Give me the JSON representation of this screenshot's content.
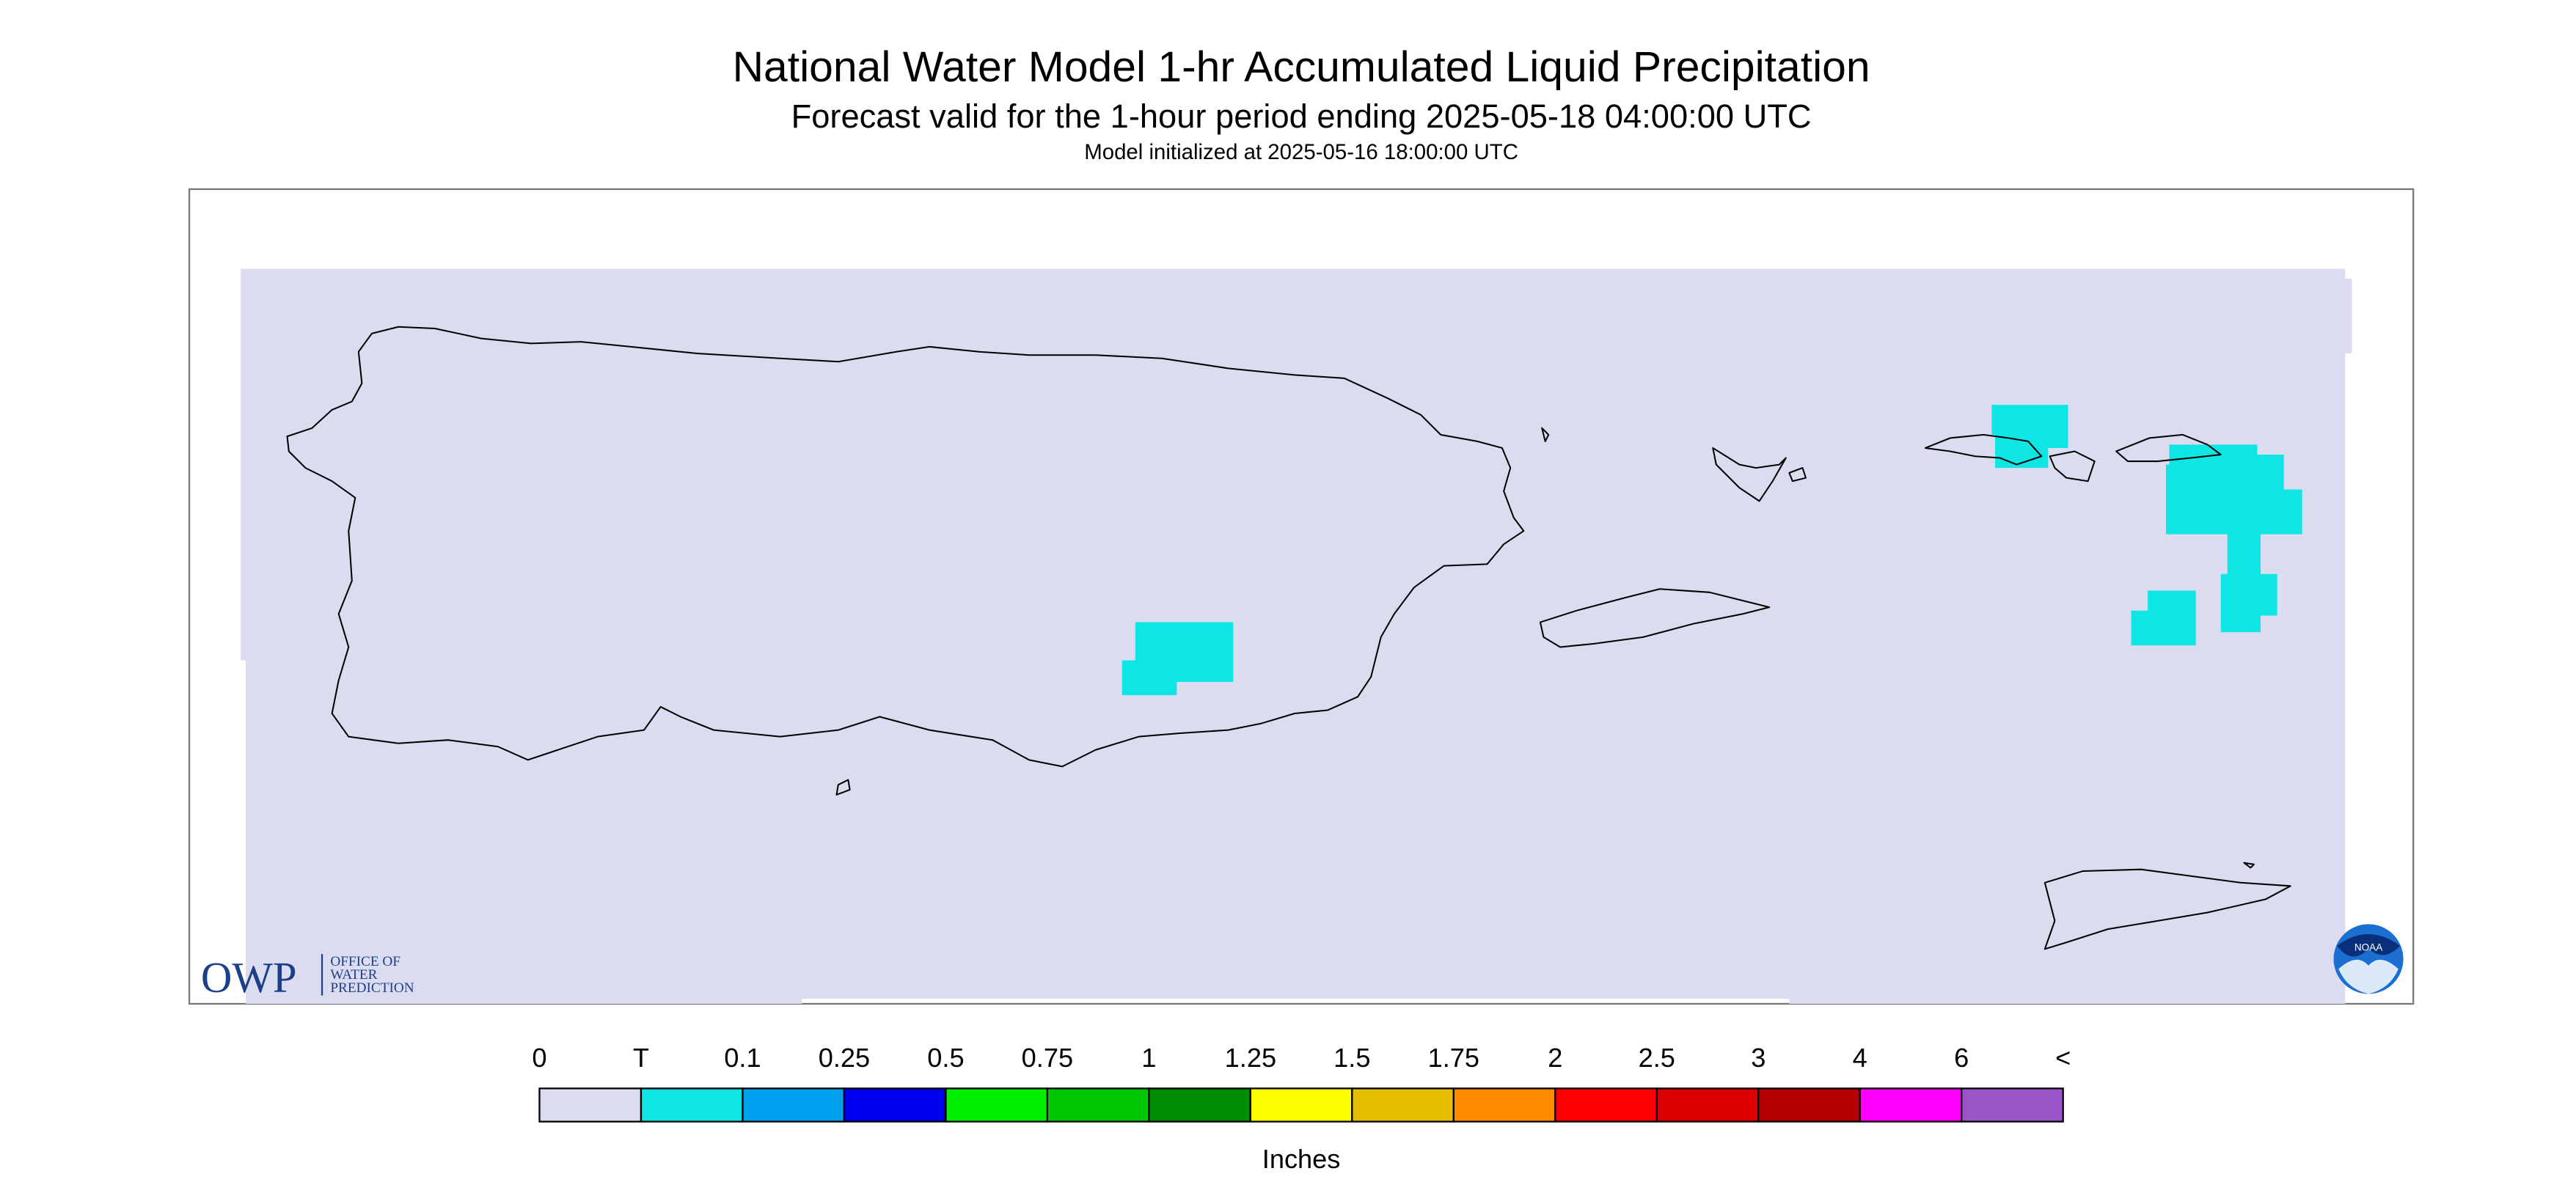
{
  "header": {
    "title": "National Water Model 1-hr Accumulated Liquid Precipitation",
    "subtitle": "Forecast valid for the 1-hour period ending 2025-05-18 04:00:00 UTC",
    "note": "Model initialized at 2025-05-16 18:00:00 UTC"
  },
  "logo": {
    "acronym": "OWP",
    "lines": [
      "OFFICE OF",
      "WATER",
      "PREDICTION"
    ],
    "badge": "NOAA"
  },
  "legend": {
    "labels": [
      "0",
      "T",
      "0.1",
      "0.25",
      "0.5",
      "0.75",
      "1",
      "1.25",
      "1.5",
      "1.75",
      "2",
      "2.5",
      "3",
      "4",
      "6",
      "<"
    ],
    "colors": [
      "#dcdcf0",
      "#0ee6e6",
      "#00a0f0",
      "#0000f0",
      "#00f000",
      "#00c800",
      "#008c00",
      "#ffff00",
      "#e6c000",
      "#ff8c00",
      "#ff0000",
      "#dc0000",
      "#b40000",
      "#ff00ff",
      "#9955c8"
    ],
    "unit": "Inches"
  }
}
